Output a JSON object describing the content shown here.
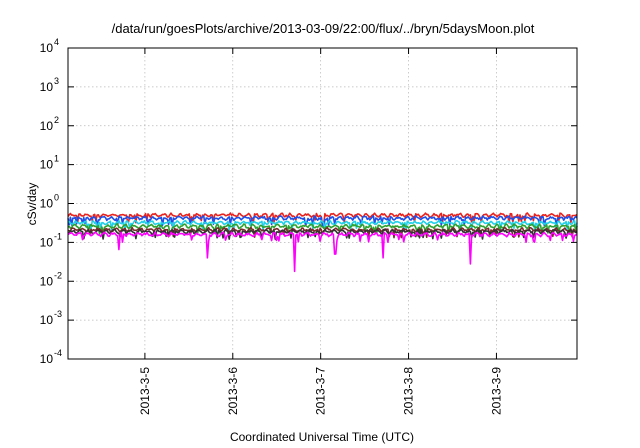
{
  "chart_data": {
    "type": "line",
    "title": "/data/run/goesPlots/archive/2013-03-09/22:00/flux/../bryn/5daysMoon.plot",
    "xlabel": "Coordinated Universal Time (UTC)",
    "ylabel": "cSv/day",
    "yscale": "log",
    "ylim": [
      0.0001,
      10000
    ],
    "xlim": [
      "2013-03-04 03:00",
      "2013-03-09 22:00"
    ],
    "x_ticks": [
      "2013-3-5",
      "2013-3-6",
      "2013-3-7",
      "2013-3-8",
      "2013-3-9"
    ],
    "y_ticks": [
      {
        "base": "10",
        "exp": "-4"
      },
      {
        "base": "10",
        "exp": "-3"
      },
      {
        "base": "10",
        "exp": "-2"
      },
      {
        "base": "10",
        "exp": "-1"
      },
      {
        "base": "10",
        "exp": "0"
      },
      {
        "base": "10",
        "exp": "1"
      },
      {
        "base": "10",
        "exp": "2"
      },
      {
        "base": "10",
        "exp": "3"
      },
      {
        "base": "10",
        "exp": "4"
      }
    ],
    "grid": true,
    "legend": "none",
    "series": [
      {
        "color": "#e8231f",
        "level": 0.5,
        "dips": [
          {
            "x": "2013-03-07 00:40",
            "y": 0.28
          }
        ]
      },
      {
        "color": "#1f4fe8",
        "level": 0.42,
        "dips": [
          {
            "x": "2013-03-07 00:40",
            "y": 0.25
          }
        ]
      },
      {
        "color": "#1fd0e8",
        "level": 0.32,
        "dips": []
      },
      {
        "color": "#2ea12e",
        "level": 0.26,
        "dips": []
      },
      {
        "color": "#7a2a2a",
        "level": 0.21,
        "dips": []
      },
      {
        "color": "#333333",
        "level": 0.19,
        "dips": []
      },
      {
        "color": "#ff00ff",
        "level": 0.16,
        "dips": [
          {
            "x": "2013-03-04 17:00",
            "y": 0.065
          },
          {
            "x": "2013-03-05 17:00",
            "y": 0.04
          },
          {
            "x": "2013-03-06 17:00",
            "y": 0.018
          },
          {
            "x": "2013-03-07 04:00",
            "y": 0.05
          },
          {
            "x": "2013-03-07 17:00",
            "y": 0.04
          },
          {
            "x": "2013-03-08 17:00",
            "y": 0.028
          }
        ]
      }
    ]
  }
}
